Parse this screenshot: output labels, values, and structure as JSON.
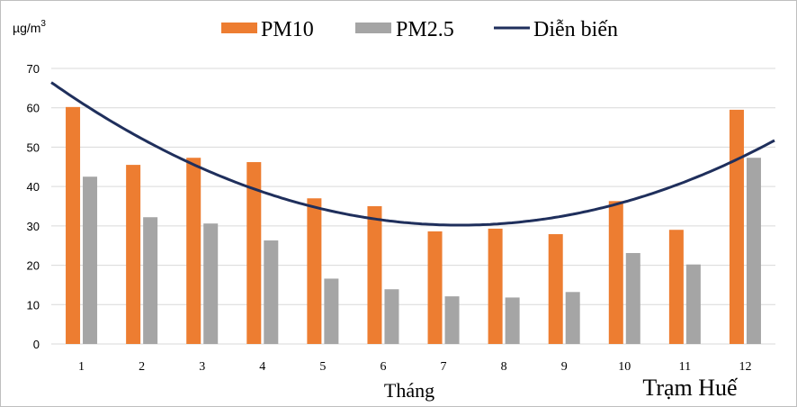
{
  "chart_data": {
    "type": "bar",
    "categories": [
      "1",
      "2",
      "3",
      "4",
      "5",
      "6",
      "7",
      "8",
      "9",
      "10",
      "11",
      "12"
    ],
    "series": [
      {
        "name": "PM10",
        "type": "bar",
        "color": "#ed7d31",
        "values": [
          60.2,
          45.5,
          47.3,
          46.2,
          37.0,
          35.0,
          28.6,
          29.3,
          27.9,
          36.3,
          29.0,
          59.5
        ]
      },
      {
        "name": "PM2.5",
        "type": "bar",
        "color": "#a5a5a5",
        "values": [
          42.5,
          32.2,
          30.6,
          26.3,
          16.6,
          13.9,
          12.1,
          11.8,
          13.2,
          23.1,
          20.2,
          47.3
        ]
      },
      {
        "name": "Diễn biến",
        "type": "line",
        "color": "#1f2f5c",
        "values": [
          61.9,
          51.9,
          44.0,
          38.4,
          34.2,
          31.7,
          30.5,
          30.8,
          32.7,
          36.0,
          41.1,
          47.8
        ]
      }
    ],
    "unit_label": {
      "base": "µg/m",
      "sup": "3"
    },
    "xlabel": "Tháng",
    "annotation": "Trạm Huế",
    "yticks": [
      "0",
      "10",
      "20",
      "30",
      "40",
      "50",
      "60",
      "70"
    ],
    "ylim": [
      0,
      70
    ],
    "grid": true,
    "legend_position": "top"
  }
}
